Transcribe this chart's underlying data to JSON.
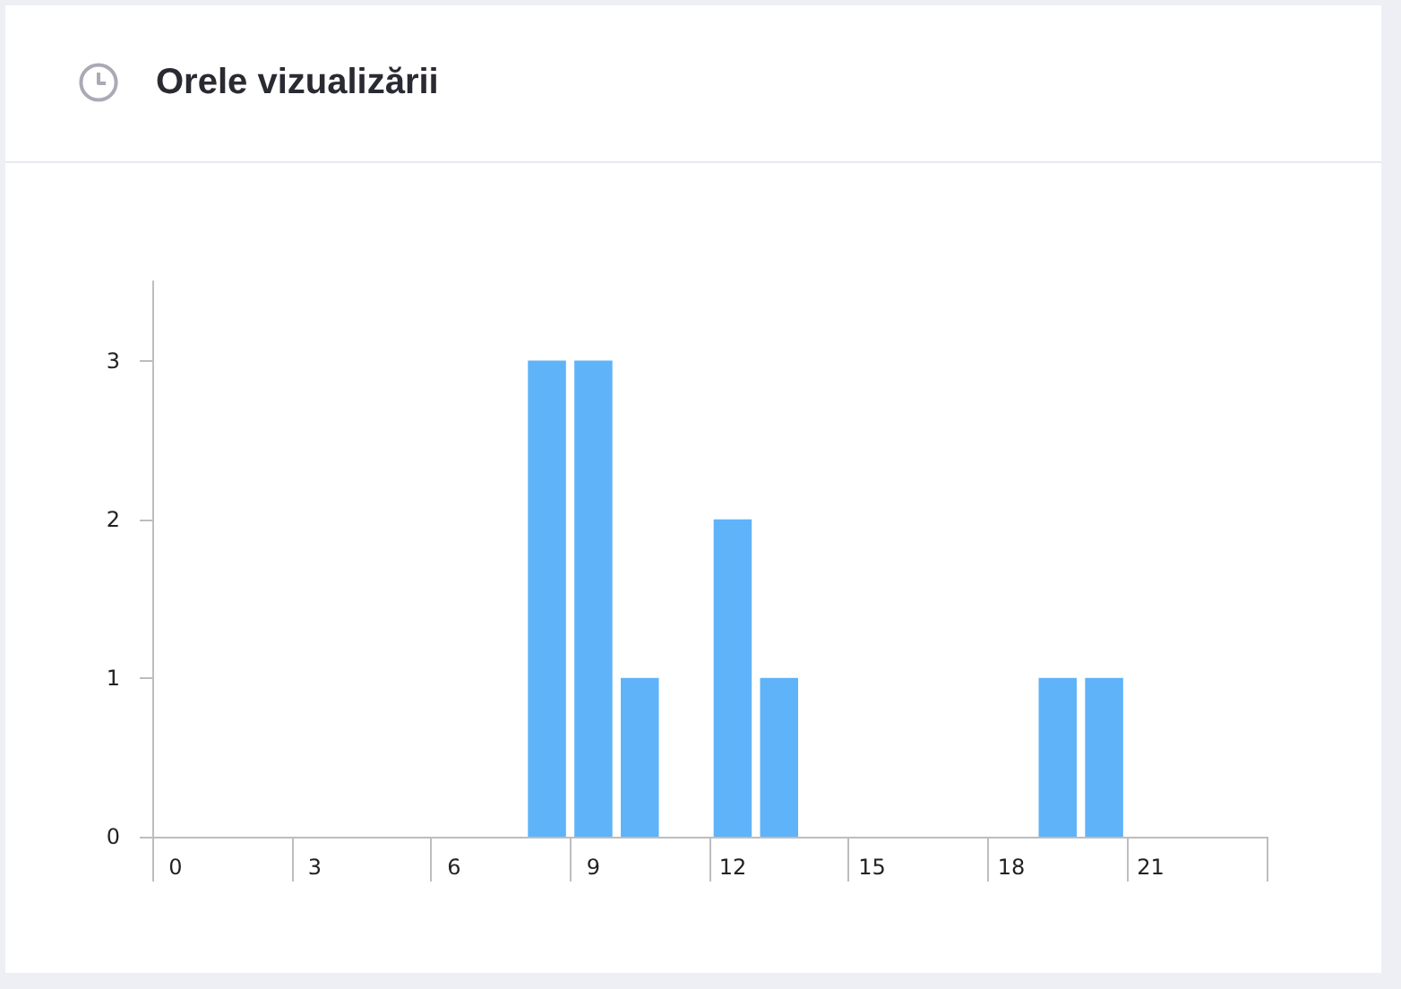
{
  "chart_data": {
    "type": "bar",
    "title": "Orele vizualizării",
    "categories": [
      "0",
      null,
      null,
      "3",
      null,
      null,
      "6",
      null,
      null,
      "9",
      null,
      null,
      "12",
      null,
      null,
      "15",
      null,
      null,
      "18",
      null,
      null,
      "21",
      null,
      null
    ],
    "values": [
      0,
      0,
      0,
      0,
      0,
      0,
      0,
      0,
      3,
      3,
      1,
      0,
      2,
      1,
      0,
      0,
      0,
      0,
      0,
      1,
      1,
      0,
      0,
      0
    ],
    "color": "#5fb3f9",
    "ylim": [
      0,
      3.5
    ],
    "yticks": [
      0,
      1,
      2,
      3
    ]
  }
}
